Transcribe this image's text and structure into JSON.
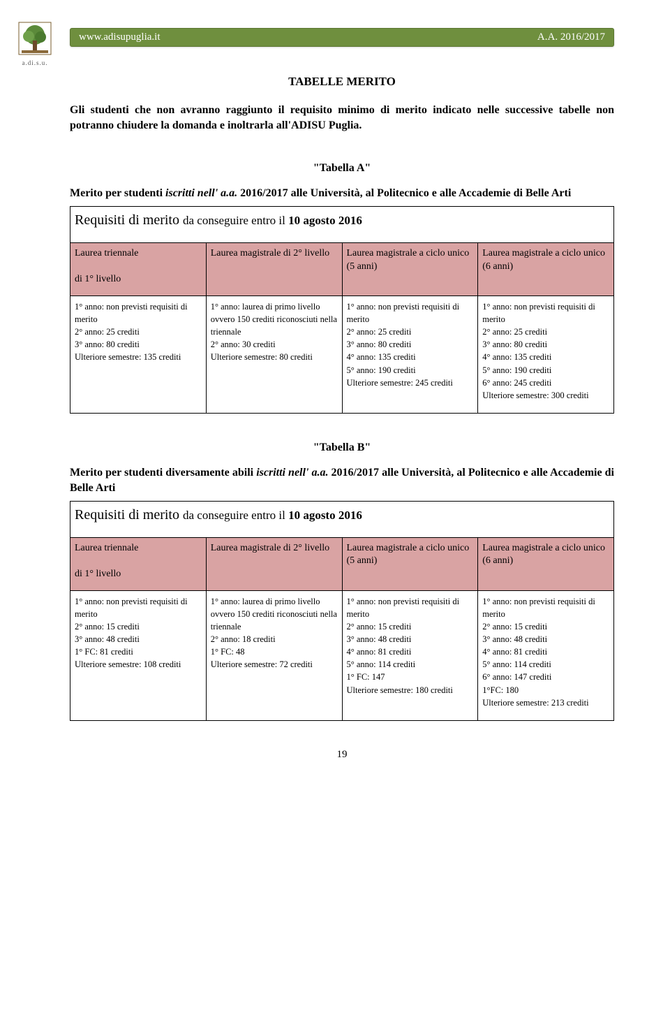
{
  "logo": {
    "caption": "a.di.s.u."
  },
  "header": {
    "left": "www.adisupuglia.it",
    "right": "A.A. 2016/2017"
  },
  "title": "TABELLE MERITO",
  "intro": "Gli studenti che non avranno raggiunto il requisito minimo di merito indicato nelle successive tabelle non potranno chiudere la domanda e inoltrarla all'ADISU Puglia.",
  "tabA": {
    "title": "\"Tabella A\"",
    "desc_pre": "Merito per studenti ",
    "desc_it": "iscritti nell' a.a.",
    "desc_post": " 2016/2017 alle Università, al Politecnico e alle Accademie di Belle Arti",
    "req_pre": "Requisiti di merito ",
    "req_post": "da conseguire entro il ",
    "req_bold": "10 agosto 2016",
    "headers": {
      "c1a": "Laurea triennale",
      "c1b": "di 1° livello",
      "c2": "Laurea magistrale di 2° livello",
      "c3": "Laurea magistrale a ciclo unico (5 anni)",
      "c4": "Laurea magistrale a ciclo unico (6 anni)"
    },
    "cells": {
      "c1": "1° anno: non previsti requisiti di merito\n2° anno: 25 crediti\n3° anno: 80 crediti\nUlteriore semestre: 135 crediti",
      "c2": "1° anno: laurea di primo livello ovvero 150 crediti riconosciuti nella triennale\n2° anno: 30 crediti\nUlteriore semestre: 80 crediti",
      "c3": "1° anno: non previsti requisiti di merito\n2° anno: 25 crediti\n3° anno: 80 crediti\n4° anno: 135 crediti\n5° anno: 190 crediti\nUlteriore semestre: 245 crediti",
      "c4": "1° anno: non previsti requisiti di merito\n2° anno: 25 crediti\n3° anno: 80 crediti\n4° anno: 135 crediti\n5° anno: 190 crediti\n6° anno: 245 crediti\nUlteriore semestre: 300 crediti"
    }
  },
  "tabB": {
    "title": "\"Tabella B\"",
    "desc_pre": "Merito per studenti diversamente abili ",
    "desc_it": "iscritti nell' a.a.",
    "desc_post": " 2016/2017 alle Università, al Politecnico e alle Accademie di Belle Arti",
    "req_pre": "Requisiti di merito ",
    "req_post": "da conseguire entro il ",
    "req_bold": "10 agosto 2016",
    "headers": {
      "c1a": "Laurea triennale",
      "c1b": "di 1° livello",
      "c2": "Laurea magistrale di 2° livello",
      "c3": "Laurea magistrale a ciclo unico (5 anni)",
      "c4": "Laurea magistrale a ciclo unico (6 anni)"
    },
    "cells": {
      "c1": "1° anno: non previsti requisiti di merito\n2° anno: 15 crediti\n3° anno: 48 crediti\n1° FC: 81 crediti\nUlteriore semestre: 108 crediti",
      "c2": "1° anno: laurea di primo livello ovvero 150 crediti riconosciuti nella triennale\n2° anno: 18 crediti\n1° FC: 48\nUlteriore semestre: 72 crediti",
      "c3": "1° anno: non previsti requisiti di merito\n2° anno: 15 crediti\n3° anno: 48 crediti\n4° anno: 81 crediti\n5° anno: 114 crediti\n1° FC: 147\nUlteriore semestre: 180 crediti",
      "c4": "1° anno: non previsti requisiti di merito\n2° anno: 15 crediti\n3° anno: 48 crediti\n4° anno: 81 crediti\n5° anno: 114 crediti\n6° anno: 147 crediti\n1°FC: 180\nUlteriore semestre: 213 crediti"
    }
  },
  "pagenum": "19",
  "colors": {
    "header_bg": "#6f8f3e",
    "hdr_cell_bg": "#d9a3a3"
  }
}
